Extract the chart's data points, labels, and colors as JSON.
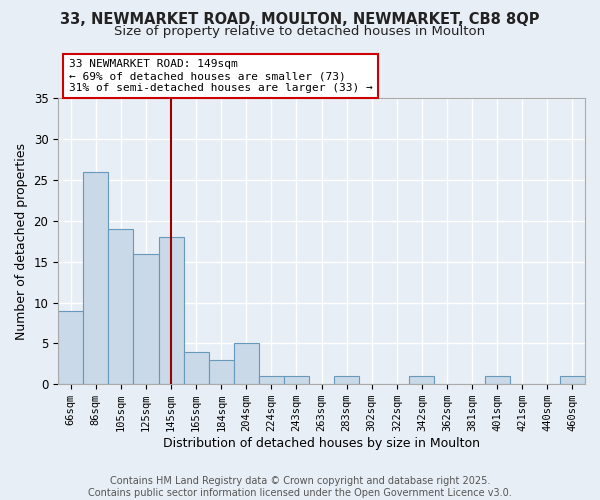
{
  "title1": "33, NEWMARKET ROAD, MOULTON, NEWMARKET, CB8 8QP",
  "title2": "Size of property relative to detached houses in Moulton",
  "xlabel": "Distribution of detached houses by size in Moulton",
  "ylabel": "Number of detached properties",
  "bar_labels": [
    "66sqm",
    "86sqm",
    "105sqm",
    "125sqm",
    "145sqm",
    "165sqm",
    "184sqm",
    "204sqm",
    "224sqm",
    "243sqm",
    "263sqm",
    "283sqm",
    "302sqm",
    "322sqm",
    "342sqm",
    "362sqm",
    "381sqm",
    "401sqm",
    "421sqm",
    "440sqm",
    "460sqm"
  ],
  "bar_values": [
    9,
    26,
    19,
    16,
    18,
    4,
    3,
    5,
    1,
    1,
    0,
    1,
    0,
    0,
    1,
    0,
    0,
    1,
    0,
    0,
    1
  ],
  "bar_color": "#c9d9e8",
  "bar_edge_color": "#6699bb",
  "bg_color": "#e8eef5",
  "grid_color": "#ffffff",
  "vline_x": 4,
  "vline_color": "#990000",
  "annotation_text": "33 NEWMARKET ROAD: 149sqm\n← 69% of detached houses are smaller (73)\n31% of semi-detached houses are larger (33) →",
  "annotation_box_color": "#ffffff",
  "annotation_box_edge": "#cc0000",
  "ylim": [
    0,
    35
  ],
  "yticks": [
    0,
    5,
    10,
    15,
    20,
    25,
    30,
    35
  ],
  "footer": "Contains HM Land Registry data © Crown copyright and database right 2025.\nContains public sector information licensed under the Open Government Licence v3.0.",
  "title_fontsize": 10.5,
  "subtitle_fontsize": 9.5
}
